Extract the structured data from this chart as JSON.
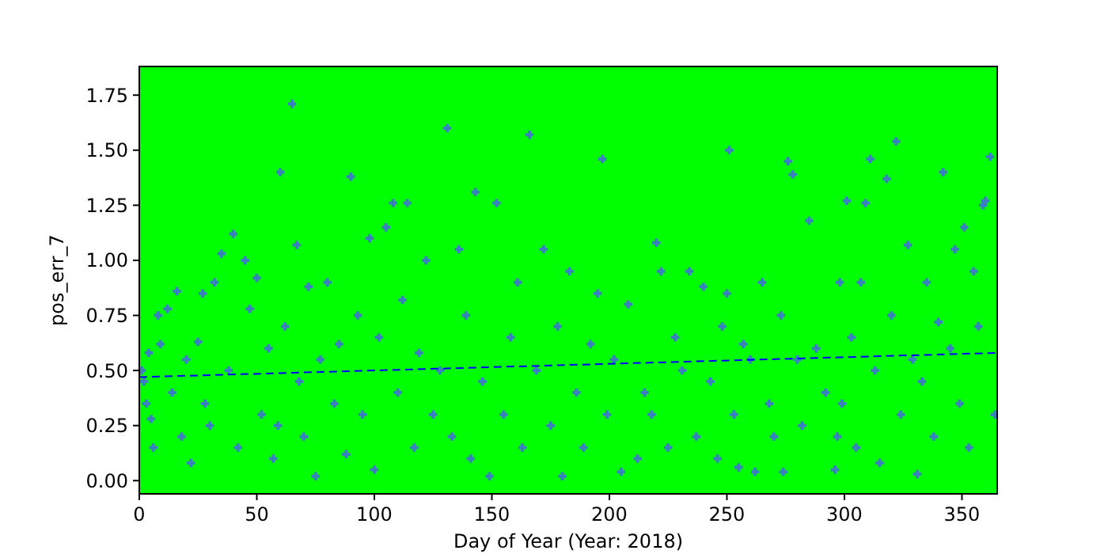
{
  "chart_data": {
    "type": "scatter",
    "xlabel": "Day of Year (Year: 2018)",
    "ylabel": "pos_err_7",
    "xlim": [
      0,
      365
    ],
    "ylim": [
      -0.06,
      1.88
    ],
    "xticks": [
      0,
      50,
      100,
      150,
      200,
      250,
      300,
      350
    ],
    "yticks": [
      {
        "value": 0,
        "label": "0.00"
      },
      {
        "value": 0.25,
        "label": "0.25"
      },
      {
        "value": 0.5,
        "label": "0.50"
      },
      {
        "value": 0.75,
        "label": "0.75"
      },
      {
        "value": 1,
        "label": "1.00"
      },
      {
        "value": 1.25,
        "label": "1.25"
      },
      {
        "value": 1.5,
        "label": "1.50"
      },
      {
        "value": 1.75,
        "label": "1.75"
      }
    ],
    "grid": false,
    "series": [
      {
        "color": "#3a7fbf",
        "marker": "cross",
        "x": [
          1,
          2,
          3,
          4,
          5,
          6,
          8,
          9,
          12,
          14,
          16,
          18,
          20,
          22,
          25,
          27,
          28,
          30,
          32,
          35,
          38,
          40,
          42,
          45,
          47,
          50,
          52,
          55,
          57,
          59,
          60,
          62,
          65,
          67,
          68,
          70,
          72,
          75,
          77,
          80,
          83,
          85,
          88,
          90,
          93,
          95,
          98,
          100,
          102,
          105,
          108,
          110,
          112,
          114,
          117,
          119,
          122,
          125,
          128,
          131,
          133,
          136,
          139,
          141,
          143,
          146,
          149,
          152,
          155,
          158,
          161,
          163,
          166,
          169,
          172,
          175,
          178,
          180,
          183,
          186,
          189,
          192,
          195,
          197,
          199,
          202,
          205,
          208,
          212,
          215,
          218,
          220,
          222,
          225,
          228,
          231,
          234,
          237,
          240,
          243,
          246,
          248,
          250,
          251,
          253,
          255,
          257,
          260,
          262,
          265,
          268,
          270,
          273,
          274,
          276,
          278,
          280,
          282,
          285,
          288,
          292,
          296,
          297,
          298,
          299,
          301,
          303,
          305,
          307,
          309,
          311,
          313,
          315,
          318,
          320,
          322,
          324,
          327,
          329,
          331,
          333,
          335,
          338,
          340,
          342,
          345,
          347,
          349,
          351,
          353,
          355,
          357,
          359,
          360,
          362,
          364
        ],
        "values": [
          0.5,
          0.45,
          0.35,
          0.58,
          0.28,
          0.15,
          0.75,
          0.62,
          0.78,
          0.4,
          0.86,
          0.2,
          0.55,
          0.08,
          0.63,
          0.85,
          0.35,
          0.25,
          0.9,
          1.03,
          0.5,
          1.12,
          0.15,
          1.0,
          0.78,
          0.92,
          0.3,
          0.6,
          0.1,
          0.25,
          1.4,
          0.7,
          1.71,
          1.07,
          0.45,
          0.2,
          0.88,
          0.02,
          0.55,
          0.9,
          0.35,
          0.62,
          0.12,
          1.38,
          0.75,
          0.3,
          1.1,
          0.05,
          0.65,
          1.15,
          1.26,
          0.4,
          0.82,
          1.26,
          0.15,
          0.58,
          1.0,
          0.3,
          0.5,
          1.6,
          0.2,
          1.05,
          0.75,
          0.1,
          1.31,
          0.45,
          0.02,
          1.26,
          0.3,
          0.65,
          0.9,
          0.15,
          1.57,
          0.5,
          1.05,
          0.25,
          0.7,
          0.02,
          0.95,
          0.4,
          0.15,
          0.62,
          0.85,
          1.46,
          0.3,
          0.55,
          0.04,
          0.8,
          0.1,
          0.4,
          0.3,
          1.08,
          0.95,
          0.15,
          0.65,
          0.5,
          0.95,
          0.2,
          0.88,
          0.45,
          0.1,
          0.7,
          0.85,
          1.5,
          0.3,
          0.06,
          0.62,
          0.55,
          0.04,
          0.9,
          0.35,
          0.2,
          0.75,
          0.04,
          1.45,
          1.39,
          0.55,
          0.25,
          1.18,
          0.6,
          0.4,
          0.05,
          0.2,
          0.9,
          0.35,
          1.27,
          0.65,
          0.15,
          0.9,
          1.26,
          1.46,
          0.5,
          0.08,
          1.37,
          0.75,
          1.54,
          0.3,
          1.07,
          0.55,
          0.03,
          0.45,
          0.9,
          0.2,
          0.72,
          1.4,
          0.6,
          1.05,
          0.35,
          1.15,
          0.15,
          0.95,
          0.7,
          1.25,
          1.27,
          1.47,
          0.3
        ]
      },
      {
        "type": "line",
        "color": "#0000ff",
        "marker": "none",
        "line_style": "dashed",
        "x": [
          0,
          365
        ],
        "values": [
          0.47,
          0.58
        ]
      }
    ]
  }
}
